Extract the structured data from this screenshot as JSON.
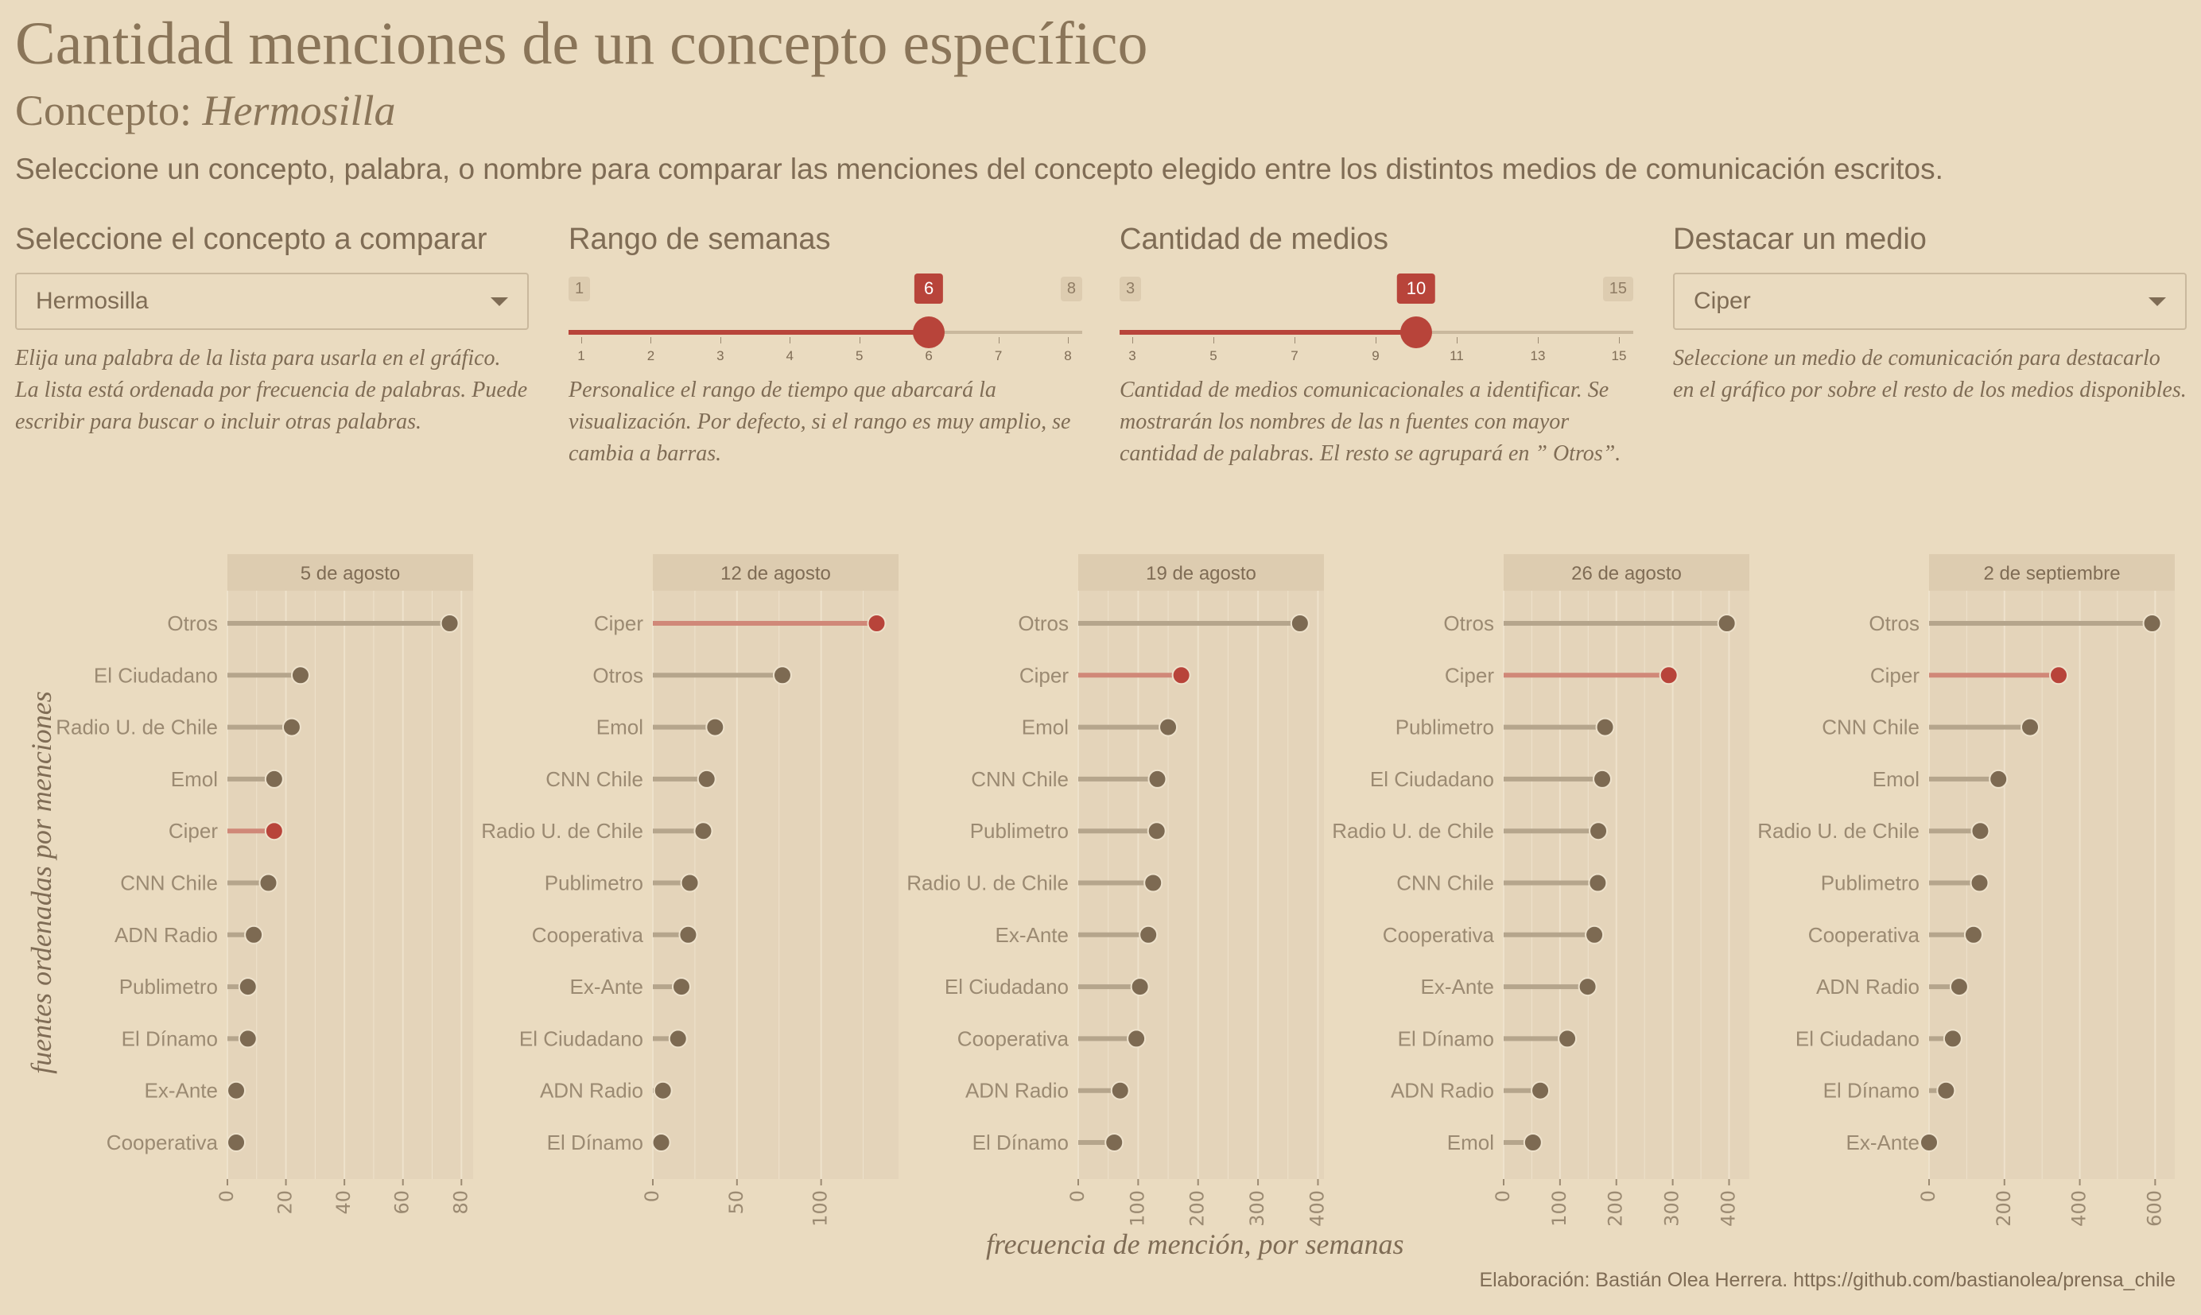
{
  "header": {
    "title": "Cantidad menciones de un concepto específico",
    "subtitle_prefix": "Concepto: ",
    "subtitle_concept": "Hermosilla",
    "description": "Seleccione un concepto, palabra, o nombre para comparar las menciones del concepto elegido entre los distintos medios de comunicación escritos."
  },
  "controls": {
    "concept": {
      "label": "Seleccione el concepto a comparar",
      "value": "Hermosilla",
      "help": "Elija una palabra de la lista para usarla en el gráfico. La lista está ordenada por frecuencia de palabras. Puede escribir para buscar o incluir otras palabras."
    },
    "weeks": {
      "label": "Rango de semanas",
      "min": 1,
      "max": 8,
      "value": 6,
      "ticks": [
        1,
        2,
        3,
        4,
        5,
        6,
        7,
        8
      ],
      "help": "Personalice el rango de tiempo que abarcará la visualización. Por defecto, si el rango es muy amplio, se cambia a barras."
    },
    "media": {
      "label": "Cantidad de medios",
      "min": 3,
      "max": 15,
      "value": 10,
      "ticks": [
        3,
        5,
        7,
        9,
        11,
        13,
        15
      ],
      "help": "Cantidad de medios comunicacionales a identificar. Se mostrarán los nombres de las n fuentes con mayor cantidad de palabras. El resto se agrupará en ” Otros”."
    },
    "highlight": {
      "label": "Destacar un medio",
      "value": "Ciper",
      "help": "Seleccione un medio de comunicación para destacarlo en el gráfico por sobre el resto de los medios disponibles."
    }
  },
  "colors": {
    "highlight": "#B8443A",
    "highlight_line": "#D08878",
    "dot": "#7D6A52",
    "line": "#B5A58C",
    "panel": "#E4D4BA",
    "strip": "#DDCCB0"
  },
  "chart_data": {
    "type": "lollipop",
    "ylabel": "fuentes ordenadas por menciones",
    "xlabel": "frecuencia de mención, por semanas",
    "highlight": "Ciper",
    "panels": [
      {
        "title": "5 de agosto",
        "xlim": [
          0,
          84
        ],
        "ticks": [
          0,
          20,
          40,
          60,
          80
        ],
        "items": [
          [
            "Otros",
            76
          ],
          [
            "El Ciudadano",
            25
          ],
          [
            "Radio U. de Chile",
            22
          ],
          [
            "Emol",
            16
          ],
          [
            "Ciper",
            16
          ],
          [
            "CNN Chile",
            14
          ],
          [
            "ADN Radio",
            9
          ],
          [
            "Publimetro",
            7
          ],
          [
            "El Dínamo",
            7
          ],
          [
            "Ex-Ante",
            3
          ],
          [
            "Cooperativa",
            3
          ]
        ]
      },
      {
        "title": "12 de agosto",
        "xlim": [
          0,
          146
        ],
        "ticks": [
          0,
          50,
          100
        ],
        "items": [
          [
            "Ciper",
            133
          ],
          [
            "Otros",
            77
          ],
          [
            "Emol",
            37
          ],
          [
            "CNN Chile",
            32
          ],
          [
            "Radio U. de Chile",
            30
          ],
          [
            "Publimetro",
            22
          ],
          [
            "Cooperativa",
            21
          ],
          [
            "Ex-Ante",
            17
          ],
          [
            "El Ciudadano",
            15
          ],
          [
            "ADN Radio",
            6
          ],
          [
            "El Dínamo",
            5
          ]
        ]
      },
      {
        "title": "19 de agosto",
        "xlim": [
          0,
          410
        ],
        "ticks": [
          0,
          100,
          200,
          300,
          400
        ],
        "items": [
          [
            "Otros",
            370
          ],
          [
            "Ciper",
            172
          ],
          [
            "Emol",
            150
          ],
          [
            "CNN Chile",
            132
          ],
          [
            "Publimetro",
            131
          ],
          [
            "Radio U. de Chile",
            125
          ],
          [
            "Ex-Ante",
            117
          ],
          [
            "El Ciudadano",
            103
          ],
          [
            "Cooperativa",
            97
          ],
          [
            "ADN Radio",
            70
          ],
          [
            "El Dínamo",
            60
          ]
        ]
      },
      {
        "title": "26 de agosto",
        "xlim": [
          0,
          436
        ],
        "ticks": [
          0,
          100,
          200,
          300,
          400
        ],
        "items": [
          [
            "Otros",
            396
          ],
          [
            "Ciper",
            293
          ],
          [
            "Publimetro",
            180
          ],
          [
            "El Ciudadano",
            175
          ],
          [
            "Radio U. de Chile",
            168
          ],
          [
            "CNN Chile",
            167
          ],
          [
            "Cooperativa",
            161
          ],
          [
            "Ex-Ante",
            149
          ],
          [
            "El Dínamo",
            113
          ],
          [
            "ADN Radio",
            65
          ],
          [
            "Emol",
            52
          ]
        ]
      },
      {
        "title": "2 de septiembre",
        "xlim": [
          0,
          652
        ],
        "ticks": [
          0,
          200,
          400,
          600
        ],
        "items": [
          [
            "Otros",
            592
          ],
          [
            "Ciper",
            344
          ],
          [
            "CNN Chile",
            268
          ],
          [
            "Emol",
            184
          ],
          [
            "Radio U. de Chile",
            136
          ],
          [
            "Publimetro",
            134
          ],
          [
            "Cooperativa",
            118
          ],
          [
            "ADN Radio",
            80
          ],
          [
            "El Ciudadano",
            63
          ],
          [
            "El Dínamo",
            45
          ],
          [
            "Ex-Ante",
            0
          ]
        ]
      }
    ]
  },
  "caption": "Elaboración: Bastián Olea Herrera. https://github.com/bastianolea/prensa_chile"
}
